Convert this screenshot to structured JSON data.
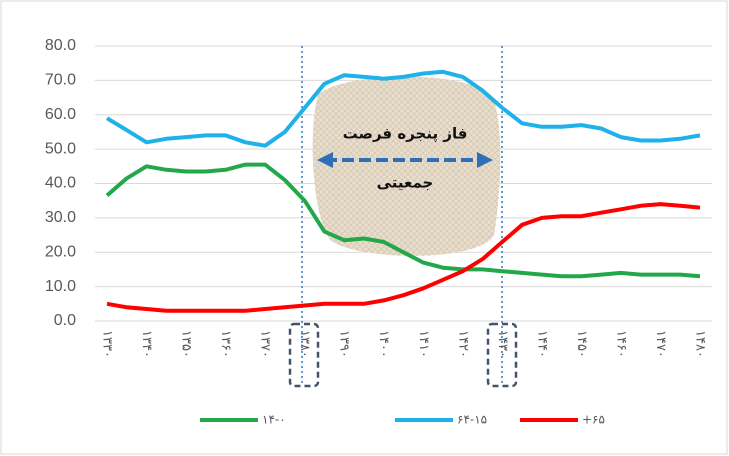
{
  "chart_data": {
    "type": "line",
    "categories": [
      "۱۳۳۰",
      null,
      "۱۳۴۰",
      null,
      "۱۳۵۰",
      null,
      "۱۳۶۰",
      null,
      "۱۳۷۰",
      null,
      "۱۳۸۰",
      null,
      "۱۳۹۰",
      null,
      "۱۴۰۰",
      null,
      "۱۴۱۰",
      null,
      "۱۴۲۰",
      null,
      "۱۴۳۰",
      null,
      "۱۴۴۰",
      null,
      "۱۴۵۰",
      null,
      "۱۴۶۰",
      null,
      "۱۴۷۰",
      null,
      "۱۴۸۰"
    ],
    "series": [
      {
        "name": "۱۴-۰",
        "color": "#22a84a",
        "values": [
          36.5,
          41.5,
          45,
          44,
          43.5,
          43.5,
          44,
          45.5,
          45.5,
          41,
          35,
          26,
          23.5,
          24,
          23,
          20,
          17,
          15.5,
          15,
          15,
          14.5,
          14,
          13.5,
          13,
          13,
          13.5,
          14,
          13.5,
          13.5,
          13.5,
          13
        ]
      },
      {
        "name": "۶۴-۱۵",
        "color": "#1eb1ea",
        "values": [
          59,
          55.5,
          52,
          53,
          53.5,
          54,
          54,
          52,
          51,
          55,
          62,
          69,
          71.5,
          71,
          70.5,
          71,
          72,
          72.5,
          71,
          67,
          62,
          57.5,
          56.5,
          56.5,
          57,
          56,
          53.5,
          52.5,
          52.5,
          53,
          54
        ]
      },
      {
        "name": "+۶۵",
        "color": "#ff0000",
        "values": [
          5,
          4,
          3.5,
          3,
          3,
          3,
          3,
          3,
          3.5,
          4,
          4.5,
          5,
          5,
          5,
          6,
          7.5,
          9.5,
          12,
          14.5,
          18,
          23,
          28,
          30,
          30.5,
          30.5,
          31.5,
          32.5,
          33.5,
          34,
          33.5,
          33
        ]
      }
    ],
    "ylim": [
      0,
      80
    ],
    "yticks": [
      {
        "value": 0,
        "label": "0.0"
      },
      {
        "value": 10,
        "label": "10.0"
      },
      {
        "value": 20,
        "label": "20.0"
      },
      {
        "value": 30,
        "label": "30.0"
      },
      {
        "value": 40,
        "label": "40.0"
      },
      {
        "value": 50,
        "label": "50.0"
      },
      {
        "value": 60,
        "label": "60.0"
      },
      {
        "value": 70,
        "label": "70.0"
      },
      {
        "value": 80,
        "label": "80.0"
      }
    ],
    "grid": true,
    "annotation": [
      "فاز پنجره فرصت",
      "جمعیتی"
    ]
  }
}
